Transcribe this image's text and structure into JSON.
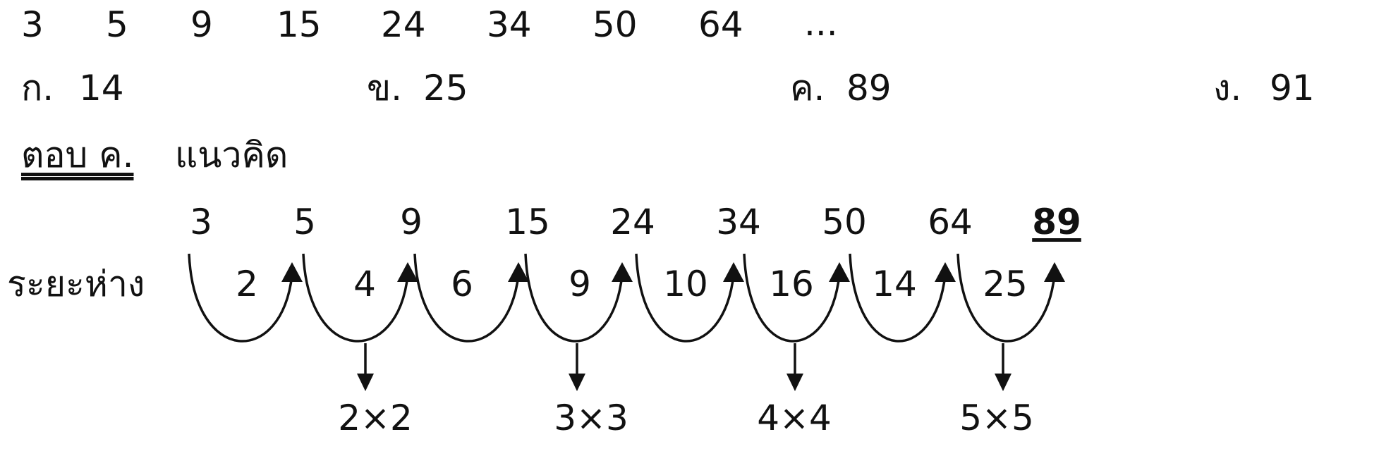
{
  "sequence": [
    "3",
    "5",
    "9",
    "15",
    "24",
    "34",
    "50",
    "64",
    "..."
  ],
  "choices": [
    {
      "label": "ก.",
      "value": "14"
    },
    {
      "label": "ข.",
      "value": "25"
    },
    {
      "label": "ค.",
      "value": "89"
    },
    {
      "label": "ง.",
      "value": "91"
    }
  ],
  "answer": {
    "label": "ตอบ ค.",
    "text": "แนวคิด"
  },
  "solution": {
    "terms": [
      "3",
      "5",
      "9",
      "15",
      "24",
      "34",
      "50",
      "64",
      "89"
    ],
    "gap_label": "ระยะห่าง",
    "gaps": [
      "2",
      "4",
      "6",
      "9",
      "10",
      "16",
      "14",
      "25"
    ],
    "squares": [
      "2×2",
      "3×3",
      "4×4",
      "5×5"
    ]
  }
}
